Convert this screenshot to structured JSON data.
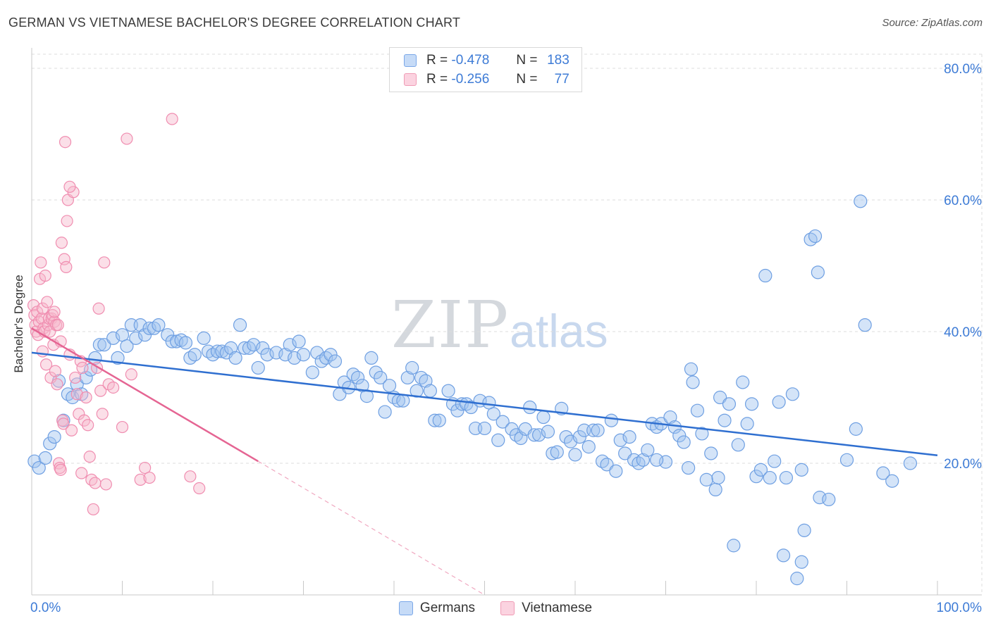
{
  "title": "GERMAN VS VIETNAMESE BACHELOR'S DEGREE CORRELATION CHART",
  "source": "Source: ZipAtlas.com",
  "watermark": {
    "zip": "ZIP",
    "atlas": "atlas"
  },
  "stats": [
    {
      "r_label": "R =",
      "r": "-0.478",
      "n_label": "N =",
      "n": "183",
      "color": "#7aa7e8"
    },
    {
      "r_label": "R =",
      "r": "-0.256",
      "n_label": "N =",
      "n": "77",
      "color": "#f09bb5"
    }
  ],
  "chart_data": {
    "type": "scatter",
    "title": "GERMAN VS VIETNAMESE BACHELOR'S DEGREE CORRELATION CHART",
    "xlabel": "",
    "ylabel": "Bachelor's Degree",
    "xlim": [
      0,
      100
    ],
    "ylim": [
      0,
      80
    ],
    "x_tick_labels": [
      "0.0%",
      "100.0%"
    ],
    "y_ticks": [
      20,
      40,
      60,
      80
    ],
    "y_tick_labels": [
      "20.0%",
      "40.0%",
      "60.0%",
      "80.0%"
    ],
    "grid": true,
    "legend": [
      "Germans",
      "Vietnamese"
    ],
    "series": [
      {
        "name": "Germans",
        "color": "#6e9fe2",
        "trend": {
          "x0": 0,
          "y0": 36.8,
          "x1": 100,
          "y1": 21.2
        },
        "points": [
          [
            0.3,
            20.3
          ],
          [
            0.8,
            19.3
          ],
          [
            1.5,
            20.8
          ],
          [
            2,
            23
          ],
          [
            2.5,
            24
          ],
          [
            3,
            32.5
          ],
          [
            3.5,
            26.5
          ],
          [
            4,
            30.5
          ],
          [
            4.5,
            30
          ],
          [
            5,
            32
          ],
          [
            5.5,
            30.5
          ],
          [
            6,
            33
          ],
          [
            6.5,
            34.2
          ],
          [
            7,
            36
          ],
          [
            7.5,
            38
          ],
          [
            8,
            38
          ],
          [
            9,
            39
          ],
          [
            9.5,
            36
          ],
          [
            10,
            39.5
          ],
          [
            10.5,
            37.8
          ],
          [
            11,
            41
          ],
          [
            11.5,
            39
          ],
          [
            12,
            41
          ],
          [
            12.5,
            39.5
          ],
          [
            13,
            40.5
          ],
          [
            13.5,
            40.5
          ],
          [
            14,
            41
          ],
          [
            15,
            39.5
          ],
          [
            15.5,
            38.5
          ],
          [
            16,
            38.5
          ],
          [
            16.5,
            38.7
          ],
          [
            17,
            38.3
          ],
          [
            17.5,
            36
          ],
          [
            18,
            36.5
          ],
          [
            19,
            39
          ],
          [
            19.5,
            37
          ],
          [
            20,
            36.5
          ],
          [
            20.5,
            37
          ],
          [
            21,
            37
          ],
          [
            21.5,
            36.8
          ],
          [
            22,
            37.5
          ],
          [
            22.5,
            36
          ],
          [
            23,
            41
          ],
          [
            23.5,
            37.5
          ],
          [
            24,
            37.5
          ],
          [
            24.5,
            38
          ],
          [
            25,
            34.5
          ],
          [
            25.5,
            37.5
          ],
          [
            26,
            36.5
          ],
          [
            27,
            36.8
          ],
          [
            28,
            36.5
          ],
          [
            28.5,
            38
          ],
          [
            29,
            36
          ],
          [
            29.5,
            38.5
          ],
          [
            30,
            36.5
          ],
          [
            31,
            33.8
          ],
          [
            31.5,
            36.8
          ],
          [
            32,
            35.5
          ],
          [
            32.5,
            36
          ],
          [
            33,
            36.5
          ],
          [
            33.5,
            35.5
          ],
          [
            34,
            30.5
          ],
          [
            34.5,
            32.3
          ],
          [
            35,
            31.5
          ],
          [
            35.5,
            33.5
          ],
          [
            36,
            33
          ],
          [
            36.5,
            31.8
          ],
          [
            37,
            30.2
          ],
          [
            37.5,
            36
          ],
          [
            38,
            33.8
          ],
          [
            38.5,
            33
          ],
          [
            39,
            27.8
          ],
          [
            39.5,
            31.8
          ],
          [
            40,
            30
          ],
          [
            40.5,
            29.5
          ],
          [
            41,
            29.5
          ],
          [
            41.5,
            33
          ],
          [
            42,
            34.5
          ],
          [
            42.5,
            31
          ],
          [
            43,
            33
          ],
          [
            43.5,
            32.5
          ],
          [
            44,
            31
          ],
          [
            44.5,
            26.5
          ],
          [
            45,
            26.5
          ],
          [
            46,
            31
          ],
          [
            46.5,
            29
          ],
          [
            47,
            28
          ],
          [
            47.5,
            29
          ],
          [
            48,
            29
          ],
          [
            48.5,
            28.5
          ],
          [
            49,
            25.3
          ],
          [
            49.5,
            29.5
          ],
          [
            50,
            25.3
          ],
          [
            50.5,
            29.2
          ],
          [
            51,
            27.5
          ],
          [
            51.5,
            23.5
          ],
          [
            52,
            26.3
          ],
          [
            53,
            25.2
          ],
          [
            53.5,
            24.3
          ],
          [
            54,
            23.8
          ],
          [
            54.5,
            25.2
          ],
          [
            55,
            28.5
          ],
          [
            55.5,
            24.3
          ],
          [
            56,
            24.3
          ],
          [
            56.5,
            27
          ],
          [
            57,
            24.8
          ],
          [
            57.5,
            21.5
          ],
          [
            58,
            21.7
          ],
          [
            58.5,
            28.3
          ],
          [
            59,
            24
          ],
          [
            59.5,
            23.3
          ],
          [
            60,
            21.3
          ],
          [
            60.5,
            24
          ],
          [
            61,
            25
          ],
          [
            61.5,
            22.5
          ],
          [
            62,
            25
          ],
          [
            62.5,
            25
          ],
          [
            63,
            20.3
          ],
          [
            63.5,
            19.8
          ],
          [
            64,
            26.5
          ],
          [
            64.5,
            18.8
          ],
          [
            65,
            23.5
          ],
          [
            65.5,
            21.5
          ],
          [
            66,
            24
          ],
          [
            66.5,
            20.5
          ],
          [
            67,
            20
          ],
          [
            67.5,
            20.5
          ],
          [
            68,
            22
          ],
          [
            68.5,
            26
          ],
          [
            69,
            25.5
          ],
          [
            69.5,
            26
          ],
          [
            70,
            20.2
          ],
          [
            70.5,
            27
          ],
          [
            71,
            25.5
          ],
          [
            71.5,
            24.2
          ],
          [
            72,
            23.2
          ],
          [
            72.5,
            19.3
          ],
          [
            73,
            32.3
          ],
          [
            73.5,
            28
          ],
          [
            74,
            24.5
          ],
          [
            74.5,
            17.5
          ],
          [
            75,
            21.5
          ],
          [
            75.5,
            16
          ],
          [
            75.8,
            17.8
          ],
          [
            76,
            30
          ],
          [
            76.5,
            26.5
          ],
          [
            77,
            29
          ],
          [
            77.5,
            7.5
          ],
          [
            78,
            22.8
          ],
          [
            78.5,
            32.3
          ],
          [
            79,
            26
          ],
          [
            79.5,
            29
          ],
          [
            80,
            18
          ],
          [
            80.5,
            19
          ],
          [
            81,
            48.5
          ],
          [
            81.5,
            17.8
          ],
          [
            82,
            20.3
          ],
          [
            82.5,
            29.3
          ],
          [
            83,
            6
          ],
          [
            83.3,
            17.8
          ],
          [
            84,
            30.5
          ],
          [
            84.5,
            2.5
          ],
          [
            85,
            5
          ],
          [
            85.3,
            9.8
          ],
          [
            86,
            54
          ],
          [
            86.5,
            54.5
          ],
          [
            86.8,
            49
          ],
          [
            87,
            14.8
          ],
          [
            88,
            14.5
          ],
          [
            90,
            20.5
          ],
          [
            91,
            25.2
          ],
          [
            91.5,
            59.8
          ],
          [
            92,
            41
          ],
          [
            94,
            18.5
          ],
          [
            95,
            17.3
          ],
          [
            97,
            20
          ],
          [
            72.8,
            34.3
          ],
          [
            85,
            19
          ],
          [
            69,
            20.5
          ]
        ]
      },
      {
        "name": "Vietnamese",
        "color": "#f08db0",
        "trend": {
          "x0": 0,
          "y0": 40.5,
          "x1": 25,
          "y1": 20.3
        },
        "trend_dashed_to": {
          "x": 50,
          "y": 0
        },
        "points": [
          [
            0.2,
            44
          ],
          [
            0.3,
            42.5
          ],
          [
            0.4,
            41
          ],
          [
            0.5,
            40
          ],
          [
            0.6,
            43
          ],
          [
            0.7,
            39.5
          ],
          [
            0.8,
            41.5
          ],
          [
            0.9,
            48
          ],
          [
            1,
            50.5
          ],
          [
            1.1,
            42
          ],
          [
            1.2,
            43.5
          ],
          [
            1.3,
            40.5
          ],
          [
            1.4,
            40
          ],
          [
            1.5,
            48.5
          ],
          [
            1.6,
            35
          ],
          [
            1.7,
            44.5
          ],
          [
            1.8,
            41
          ],
          [
            1.9,
            42
          ],
          [
            2,
            40
          ],
          [
            2.1,
            33
          ],
          [
            2.2,
            42
          ],
          [
            2.3,
            42.5
          ],
          [
            2.4,
            38
          ],
          [
            2.5,
            41.5
          ],
          [
            2.6,
            34
          ],
          [
            2.7,
            41
          ],
          [
            2.8,
            32
          ],
          [
            2.9,
            41
          ],
          [
            3,
            20
          ],
          [
            3.1,
            19.3
          ],
          [
            3.2,
            19
          ],
          [
            3.3,
            53.5
          ],
          [
            3.4,
            26.5
          ],
          [
            3.5,
            26
          ],
          [
            3.6,
            51
          ],
          [
            3.7,
            68.8
          ],
          [
            3.8,
            49.8
          ],
          [
            3.9,
            56.8
          ],
          [
            4,
            60
          ],
          [
            4.2,
            36.5
          ],
          [
            4.4,
            25
          ],
          [
            4.6,
            61.2
          ],
          [
            4.8,
            33
          ],
          [
            5,
            30.5
          ],
          [
            5.2,
            27.5
          ],
          [
            5.4,
            35.5
          ],
          [
            5.6,
            34.5
          ],
          [
            5.8,
            26.5
          ],
          [
            6,
            30
          ],
          [
            6.2,
            25.8
          ],
          [
            6.4,
            21
          ],
          [
            6.6,
            17.5
          ],
          [
            6.8,
            13
          ],
          [
            7,
            17
          ],
          [
            7.2,
            34.5
          ],
          [
            7.4,
            43.5
          ],
          [
            7.6,
            31
          ],
          [
            7.8,
            27.5
          ],
          [
            8,
            50.5
          ],
          [
            8.2,
            16.8
          ],
          [
            8.5,
            32
          ],
          [
            9,
            31.5
          ],
          [
            10,
            25.5
          ],
          [
            10.5,
            69.3
          ],
          [
            11,
            33.5
          ],
          [
            12,
            17.5
          ],
          [
            12.5,
            19.3
          ],
          [
            13,
            17.8
          ],
          [
            15.5,
            72.3
          ],
          [
            17.5,
            18
          ],
          [
            18.5,
            16.2
          ],
          [
            1.2,
            37
          ],
          [
            2.5,
            43
          ],
          [
            3.2,
            38.5
          ],
          [
            4.2,
            62
          ],
          [
            5.5,
            18.5
          ]
        ]
      }
    ]
  }
}
